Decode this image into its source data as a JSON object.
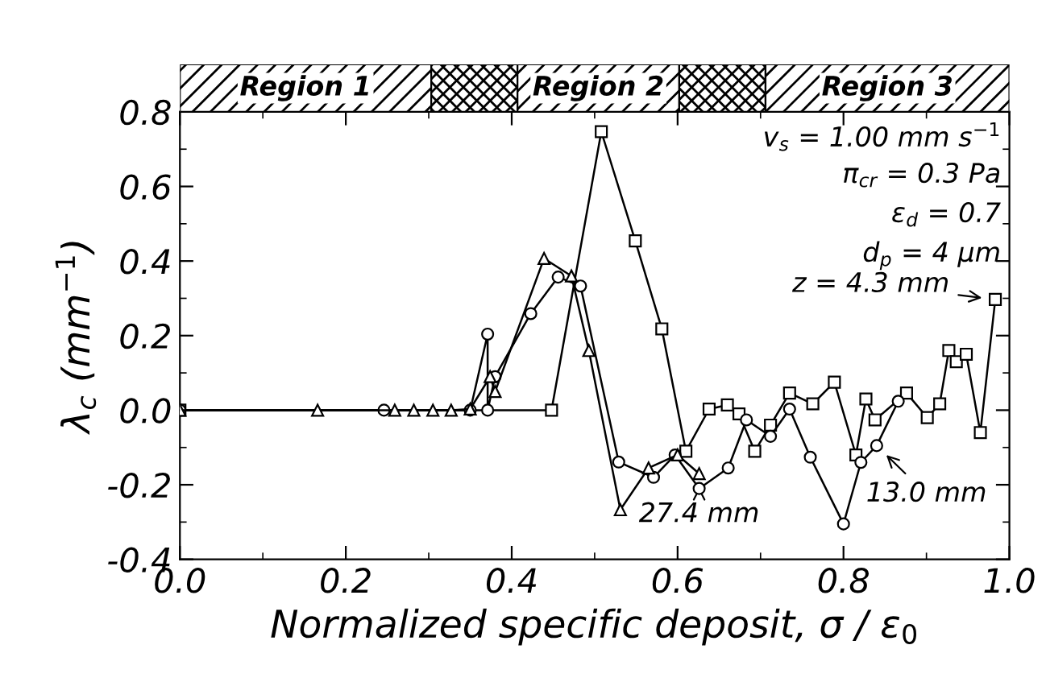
{
  "chart_data": {
    "type": "line",
    "xlabel": "Normalized specific deposit, σ / ε$_{0}$",
    "ylabel": "λ$_{c}$ (mm$^{−1}$)",
    "xlim": [
      0.0,
      1.0
    ],
    "xticks": [
      {
        "value": 0.0,
        "label": "0.0"
      },
      0.2,
      0.4,
      0.6,
      0.8,
      {
        "value": 1.0,
        "label": "1.0"
      }
    ],
    "ylim": [
      -0.4,
      0.8
    ],
    "yticks": [
      -0.4,
      -0.2,
      {
        "value": 0.0,
        "label": "0.0"
      },
      0.2,
      0.4,
      0.6,
      0.8
    ],
    "grid": false,
    "legend": false,
    "line_style": "solid",
    "series": [
      {
        "color": "#000000",
        "marker": "square",
        "x": [
          0.0,
          0.448,
          0.508,
          0.549,
          0.581,
          0.61,
          0.638,
          0.66,
          0.674,
          0.693,
          0.712,
          0.735,
          0.763,
          0.789,
          0.815,
          0.827,
          0.838,
          0.876,
          0.901,
          0.916,
          0.927,
          0.936,
          0.948,
          0.965,
          0.983
        ],
        "values": [
          0.0,
          0.0,
          0.747,
          0.454,
          0.218,
          -0.11,
          0.003,
          0.014,
          -0.01,
          -0.11,
          -0.04,
          0.046,
          0.017,
          0.075,
          -0.12,
          0.03,
          -0.026,
          0.046,
          -0.02,
          0.017,
          0.16,
          0.13,
          0.15,
          -0.06,
          0.297
        ]
      },
      {
        "color": "#000000",
        "marker": "circle",
        "x": [
          0.0,
          0.246,
          0.35,
          0.371,
          0.371,
          0.38,
          0.423,
          0.456,
          0.483,
          0.529,
          0.571,
          0.597,
          0.626,
          0.661,
          0.683,
          0.712,
          0.735,
          0.76,
          0.8,
          0.821,
          0.84,
          0.866
        ],
        "values": [
          0.0,
          0.0,
          0.0,
          0.204,
          0.0,
          0.09,
          0.259,
          0.357,
          0.333,
          -0.139,
          -0.18,
          -0.12,
          -0.21,
          -0.155,
          -0.026,
          -0.07,
          0.003,
          -0.126,
          -0.305,
          -0.14,
          -0.095,
          0.024
        ]
      },
      {
        "color": "#000000",
        "marker": "triangle",
        "x": [
          0.0,
          0.166,
          0.259,
          0.282,
          0.305,
          0.327,
          0.35,
          0.374,
          0.38,
          0.439,
          0.472,
          0.493,
          0.531,
          0.565,
          0.6,
          0.626
        ],
        "values": [
          0.0,
          0.0,
          0.0,
          0.0,
          0.0,
          0.0,
          0.003,
          0.09,
          0.05,
          0.407,
          0.36,
          0.16,
          -0.267,
          -0.155,
          -0.12,
          -0.17
        ]
      }
    ],
    "annotations": [
      "Region 1",
      "Region 2",
      "Region 3",
      "v$_{s}$ = 1.00 mm s$^{−1}$",
      "π$_{cr}$ = 0.3 Pa",
      "ε$_{d}$ = 0.7",
      "d$_{p}$ = 4 μm",
      {
        "text": "z = 4.3 mm",
        "x": 0.983,
        "y": 0.297
      },
      {
        "text": "27.4 mm",
        "x": 0.626,
        "y": -0.17
      },
      {
        "text": "13.0 mm",
        "x": 0.84,
        "y": -0.095
      }
    ]
  }
}
